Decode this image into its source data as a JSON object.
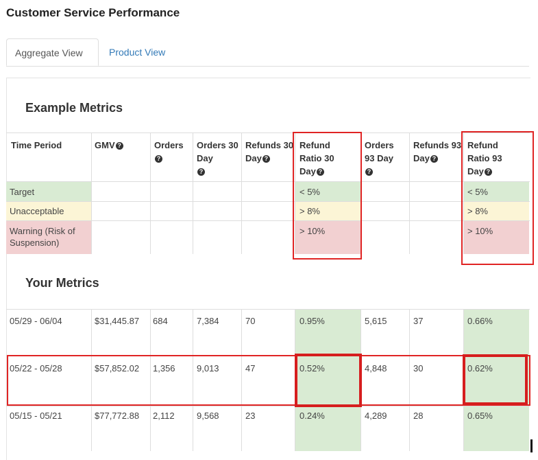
{
  "page_title": "Customer Service Performance",
  "tabs": [
    {
      "label": "Aggregate View",
      "active": true
    },
    {
      "label": "Product View",
      "active": false
    }
  ],
  "example_section": {
    "title": "Example Metrics",
    "headers": [
      {
        "text": "Time Period",
        "help": false
      },
      {
        "text": "GMV",
        "help": true
      },
      {
        "text": "Orders",
        "help": true
      },
      {
        "text": "Orders 30 Day",
        "help": true
      },
      {
        "text": "Refunds 30 Day",
        "help": true
      },
      {
        "text": "Refund Ratio 30 Day",
        "help": true
      },
      {
        "text": "Orders 93 Day",
        "help": true
      },
      {
        "text": "Refunds 93 Day",
        "help": true
      },
      {
        "text": "Refund Ratio 93 Day",
        "help": true
      }
    ],
    "rows": [
      {
        "label": "Target",
        "ratio30": "< 5%",
        "ratio93": "< 5%",
        "color": "#d9ebd3"
      },
      {
        "label": "Unacceptable",
        "ratio30": "> 8%",
        "ratio93": "> 8%",
        "color": "#fcf5d6"
      },
      {
        "label": "Warning (Risk of Suspension)",
        "ratio30": "> 10%",
        "ratio93": "> 10%",
        "color": "#f2d0d1"
      }
    ]
  },
  "your_section": {
    "title": "Your Metrics",
    "rows": [
      {
        "period": "05/29 - 06/04",
        "gmv": "$31,445.87",
        "orders": "684",
        "orders30": "7,384",
        "refunds30": "70",
        "ratio30": "0.95%",
        "orders93": "5,615",
        "refunds93": "37",
        "ratio93": "0.66%"
      },
      {
        "period": "05/22 - 05/28",
        "gmv": "$57,852.02",
        "orders": "1,356",
        "orders30": "9,013",
        "refunds30": "47",
        "ratio30": "0.52%",
        "orders93": "4,848",
        "refunds93": "30",
        "ratio93": "0.62%"
      },
      {
        "period": "05/15 - 05/21",
        "gmv": "$77,772.88",
        "orders": "2,112",
        "orders30": "9,568",
        "refunds30": "23",
        "ratio30": "0.24%",
        "orders93": "4,289",
        "refunds93": "28",
        "ratio93": "0.65%"
      }
    ]
  },
  "colors": {
    "highlight": "#e02424",
    "link": "#337ab7",
    "good": "#d9ebd3"
  },
  "icons": {
    "help": "question-circle-icon"
  }
}
